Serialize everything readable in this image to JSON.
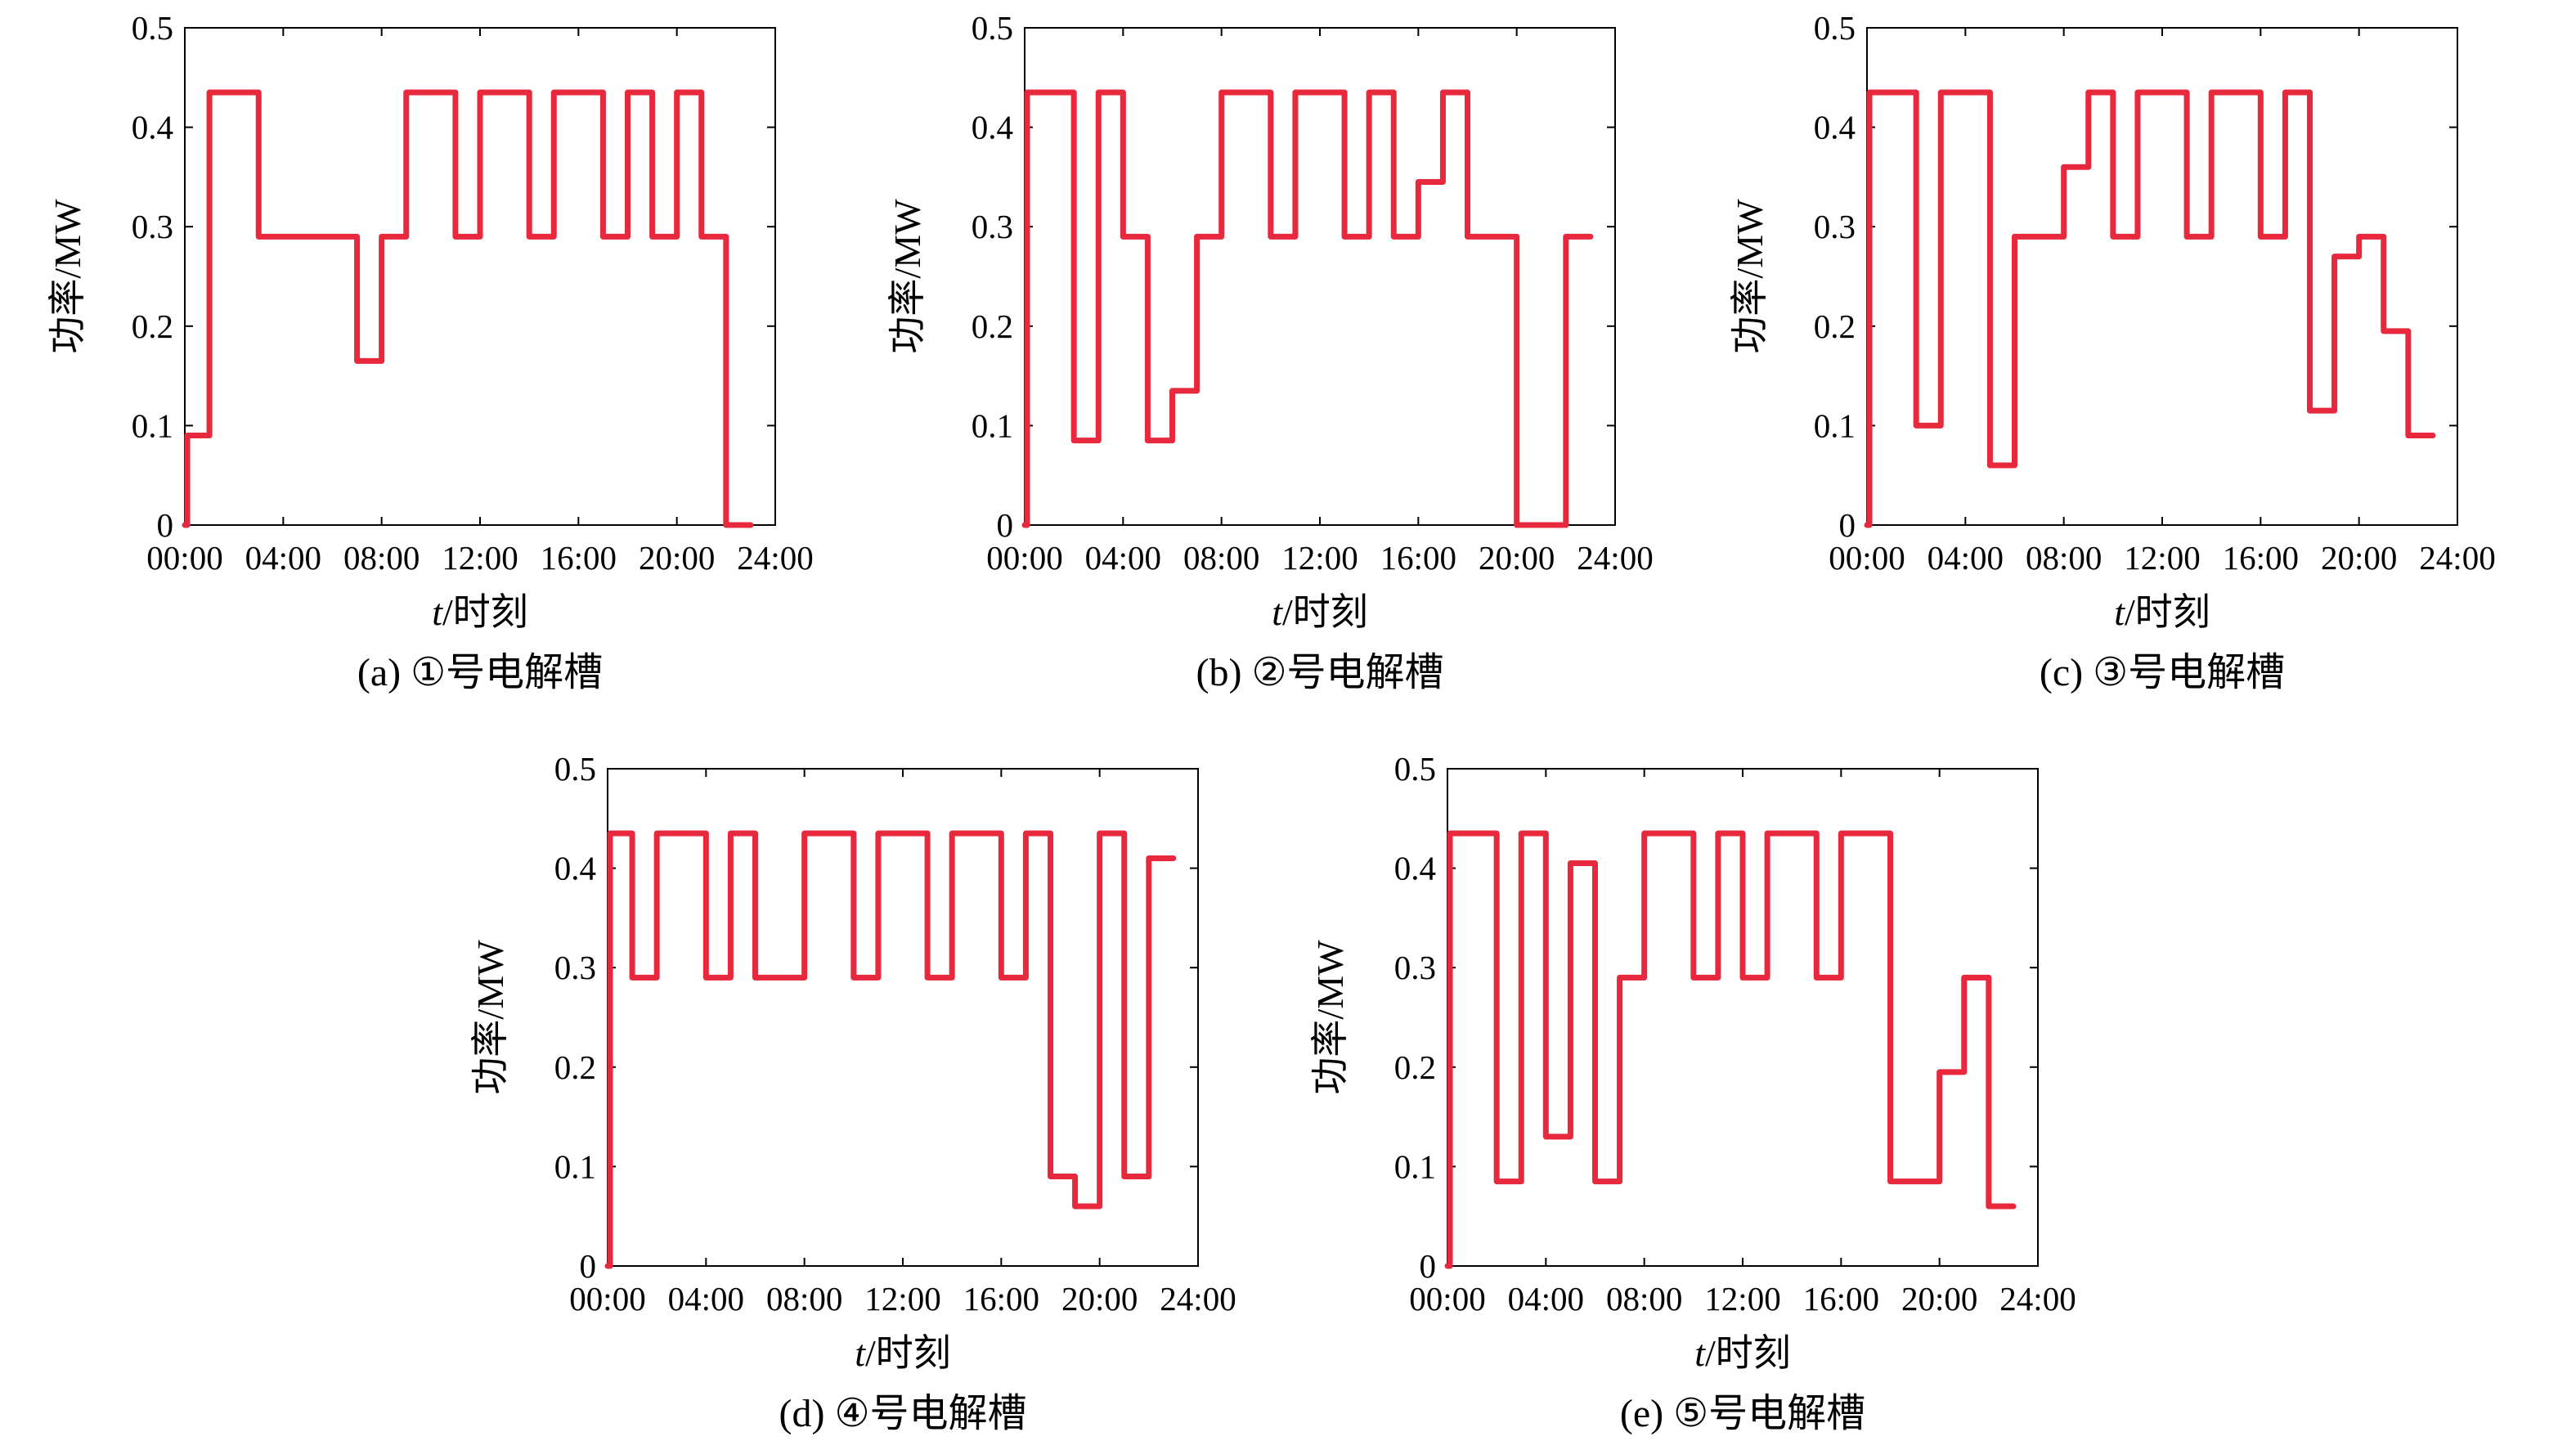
{
  "chart_data": [
    {
      "type": "line",
      "step": true,
      "caption": "(a) ①号电解槽",
      "ylabel": "功率/MW",
      "xlabel_italic": "t",
      "xlabel_rest": "/时刻",
      "ylim": [
        0,
        0.5
      ],
      "yticks": [
        "0",
        "0.1",
        "0.2",
        "0.3",
        "0.4",
        "0.5"
      ],
      "xlim": [
        0,
        24
      ],
      "xticks": [
        "00:00",
        "04:00",
        "08:00",
        "12:00",
        "16:00",
        "20:00",
        "24:00"
      ],
      "color": "#e8283c",
      "x": [
        0,
        0.1,
        1,
        3,
        7,
        8,
        9,
        11,
        12,
        14,
        15,
        17,
        18,
        19,
        20,
        21,
        22,
        23
      ],
      "y": [
        0,
        0.09,
        0.435,
        0.29,
        0.165,
        0.29,
        0.435,
        0.29,
        0.435,
        0.29,
        0.435,
        0.29,
        0.435,
        0.29,
        0.435,
        0.29,
        0.0,
        0.0
      ]
    },
    {
      "type": "line",
      "step": true,
      "caption": "(b) ②号电解槽",
      "ylabel": "功率/MW",
      "xlabel_italic": "t",
      "xlabel_rest": "/时刻",
      "ylim": [
        0,
        0.5
      ],
      "yticks": [
        "0",
        "0.1",
        "0.2",
        "0.3",
        "0.4",
        "0.5"
      ],
      "xlim": [
        0,
        24
      ],
      "xticks": [
        "00:00",
        "04:00",
        "08:00",
        "12:00",
        "16:00",
        "20:00",
        "24:00"
      ],
      "color": "#e8283c",
      "x": [
        0,
        0.1,
        2,
        3,
        4,
        5,
        6,
        7,
        8,
        10,
        11,
        13,
        14,
        15,
        16,
        17,
        18,
        20,
        22,
        23
      ],
      "y": [
        0,
        0.435,
        0.085,
        0.435,
        0.29,
        0.085,
        0.135,
        0.29,
        0.435,
        0.29,
        0.435,
        0.29,
        0.435,
        0.29,
        0.345,
        0.435,
        0.29,
        0.0,
        0.29,
        0.29
      ]
    },
    {
      "type": "line",
      "step": true,
      "caption": "(c) ③号电解槽",
      "ylabel": "功率/MW",
      "xlabel_italic": "t",
      "xlabel_rest": "/时刻",
      "ylim": [
        0,
        0.5
      ],
      "yticks": [
        "0",
        "0.1",
        "0.2",
        "0.3",
        "0.4",
        "0.5"
      ],
      "xlim": [
        0,
        24
      ],
      "xticks": [
        "00:00",
        "04:00",
        "08:00",
        "12:00",
        "16:00",
        "20:00",
        "24:00"
      ],
      "color": "#e8283c",
      "x": [
        0,
        0.1,
        2,
        3,
        5,
        6,
        8,
        9,
        10,
        11,
        13,
        14,
        16,
        17,
        18,
        19,
        20,
        21,
        22,
        23
      ],
      "y": [
        0,
        0.435,
        0.1,
        0.435,
        0.06,
        0.29,
        0.36,
        0.435,
        0.29,
        0.435,
        0.29,
        0.435,
        0.29,
        0.435,
        0.115,
        0.27,
        0.29,
        0.195,
        0.09,
        0.09
      ]
    },
    {
      "type": "line",
      "step": true,
      "caption": "(d) ④号电解槽",
      "ylabel": "功率/MW",
      "xlabel_italic": "t",
      "xlabel_rest": "/时刻",
      "ylim": [
        0,
        0.5
      ],
      "yticks": [
        "0",
        "0.1",
        "0.2",
        "0.3",
        "0.4",
        "0.5"
      ],
      "xlim": [
        0,
        24
      ],
      "xticks": [
        "00:00",
        "04:00",
        "08:00",
        "12:00",
        "16:00",
        "20:00",
        "24:00"
      ],
      "color": "#e8283c",
      "x": [
        0,
        0.1,
        1,
        2,
        4,
        5,
        6,
        8,
        10,
        11,
        13,
        14,
        16,
        17,
        18,
        19,
        20,
        21,
        22,
        23
      ],
      "y": [
        0,
        0.435,
        0.29,
        0.435,
        0.29,
        0.435,
        0.29,
        0.435,
        0.29,
        0.435,
        0.29,
        0.435,
        0.29,
        0.435,
        0.09,
        0.06,
        0.435,
        0.09,
        0.41,
        0.41
      ]
    },
    {
      "type": "line",
      "step": true,
      "caption": "(e) ⑤号电解槽",
      "ylabel": "功率/MW",
      "xlabel_italic": "t",
      "xlabel_rest": "/时刻",
      "ylim": [
        0,
        0.5
      ],
      "yticks": [
        "0",
        "0.1",
        "0.2",
        "0.3",
        "0.4",
        "0.5"
      ],
      "xlim": [
        0,
        24
      ],
      "xticks": [
        "00:00",
        "04:00",
        "08:00",
        "12:00",
        "16:00",
        "20:00",
        "24:00"
      ],
      "color": "#e8283c",
      "x": [
        0,
        0.1,
        2,
        3,
        4,
        5,
        6,
        7,
        8,
        10,
        11,
        12,
        13,
        15,
        16,
        18,
        20,
        21,
        22,
        23
      ],
      "y": [
        0,
        0.435,
        0.085,
        0.435,
        0.13,
        0.405,
        0.085,
        0.29,
        0.435,
        0.29,
        0.435,
        0.29,
        0.435,
        0.29,
        0.435,
        0.085,
        0.195,
        0.29,
        0.06,
        0.06
      ]
    }
  ]
}
